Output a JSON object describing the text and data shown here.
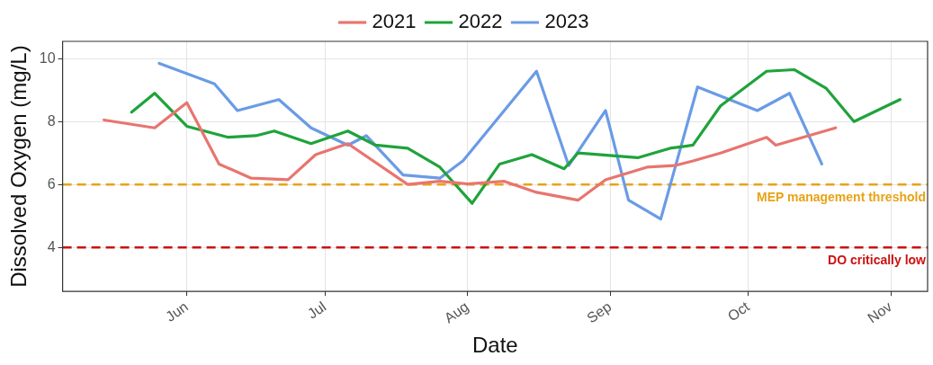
{
  "chart_data": {
    "type": "line",
    "xlabel": "Date",
    "ylabel": "Dissolved Oxygen (mg/L)",
    "xlim": [
      "--05-05",
      "--11-09"
    ],
    "xticks": [
      {
        "value": "--06-01",
        "label": "Jun"
      },
      {
        "value": "--07-01",
        "label": "Jul"
      },
      {
        "value": "--08-01",
        "label": "Aug"
      },
      {
        "value": "--09-01",
        "label": "Sep"
      },
      {
        "value": "--10-01",
        "label": "Oct"
      },
      {
        "value": "--11-01",
        "label": "Nov"
      }
    ],
    "ylim": [
      2.6,
      10.55
    ],
    "yticks": [
      4,
      6,
      8,
      10
    ],
    "grid": true,
    "legend": "top",
    "marker": "none",
    "line_style": "solid",
    "series": [
      {
        "name": "2021",
        "color": "#e8756f",
        "x": [
          "--05-14",
          "--05-25",
          "--06-01",
          "--06-08",
          "--06-15",
          "--06-23",
          "--06-29",
          "--07-06",
          "--07-19",
          "--07-26",
          "--08-01",
          "--08-09",
          "--08-16",
          "--08-25",
          "--08-31",
          "--09-09",
          "--09-15",
          "--09-19",
          "--09-25",
          "--10-05",
          "--10-07",
          "--10-20"
        ],
        "values": [
          8.05,
          7.8,
          8.6,
          6.65,
          6.2,
          6.15,
          6.95,
          7.3,
          6.0,
          6.1,
          6.02,
          6.1,
          5.75,
          5.5,
          6.15,
          6.55,
          6.6,
          6.75,
          7.0,
          7.5,
          7.25,
          7.8
        ]
      },
      {
        "name": "2022",
        "color": "#1fa33b",
        "x": [
          "--05-20",
          "--05-25",
          "--06-01",
          "--06-10",
          "--06-16",
          "--06-20",
          "--06-28",
          "--07-06",
          "--07-12",
          "--07-19",
          "--07-26",
          "--08-02",
          "--08-08",
          "--08-15",
          "--08-22",
          "--08-25",
          "--09-07",
          "--09-14",
          "--09-19",
          "--09-25",
          "--10-05",
          "--10-11",
          "--10-18",
          "--10-24",
          "--11-03"
        ],
        "values": [
          8.3,
          8.9,
          7.85,
          7.5,
          7.55,
          7.7,
          7.3,
          7.7,
          7.25,
          7.15,
          6.55,
          5.4,
          6.65,
          6.95,
          6.5,
          7.0,
          6.85,
          7.15,
          7.25,
          8.5,
          9.6,
          9.65,
          9.05,
          8.0,
          8.7
        ]
      },
      {
        "name": "2023",
        "color": "#6a9be6",
        "x": [
          "--05-26",
          "--06-07",
          "--06-12",
          "--06-21",
          "--06-28",
          "--07-06",
          "--07-10",
          "--07-18",
          "--07-26",
          "--07-31",
          "--08-16",
          "--08-23",
          "--08-31",
          "--09-05",
          "--09-12",
          "--09-20",
          "--10-03",
          "--10-10",
          "--10-17"
        ],
        "values": [
          9.85,
          9.2,
          8.35,
          8.7,
          7.8,
          7.25,
          7.55,
          6.3,
          6.2,
          6.75,
          9.6,
          6.6,
          8.35,
          5.5,
          4.9,
          9.1,
          8.35,
          8.9,
          6.65
        ]
      }
    ],
    "ref_lines": [
      {
        "axis": "y",
        "value": 6,
        "label": "MEP management threshold",
        "color": "#e8a317",
        "line_style": "dashed"
      },
      {
        "axis": "y",
        "value": 4,
        "label": "DO critically low",
        "color": "#cc1111",
        "line_style": "dashed"
      }
    ]
  }
}
